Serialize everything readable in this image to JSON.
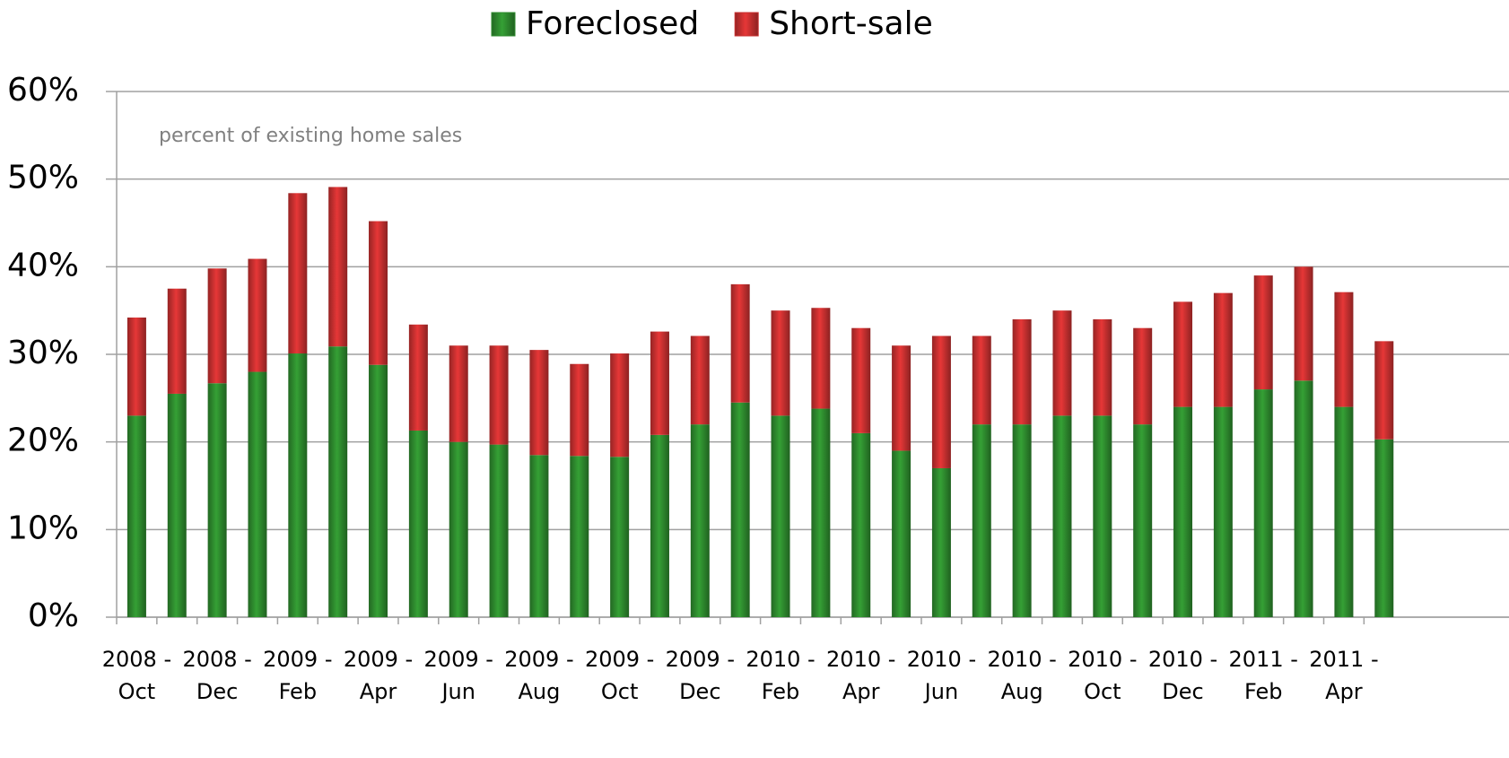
{
  "chart_data": {
    "type": "stacked_bar",
    "annotation": "percent of existing home sales",
    "categories": [
      "2008 - Oct",
      null,
      "2008 - Dec",
      null,
      "2009 - Feb",
      null,
      "2009 - Apr",
      null,
      "2009 - Jun",
      null,
      "2009 - Aug",
      null,
      "2009 - Oct",
      null,
      "2009 - Dec",
      null,
      "2010 - Feb",
      null,
      "2010 - Apr",
      null,
      "2010 - Jun",
      null,
      "2010 - Aug",
      null,
      "2010 - Oct",
      null,
      "2010 - Dec",
      null,
      "2011 - Feb",
      null,
      "2011 - Apr",
      null
    ],
    "series": [
      {
        "name": "Foreclosed",
        "color": "#2e8b2e",
        "values": [
          23,
          25.5,
          26.7,
          28,
          30.1,
          30.9,
          28.8,
          21.3,
          20,
          19.7,
          18.5,
          18.4,
          18.3,
          20.8,
          22,
          24.5,
          23,
          23.8,
          21,
          19,
          17,
          22,
          22,
          23,
          23,
          22,
          24,
          24,
          26,
          27,
          24,
          20.3
        ]
      },
      {
        "name": "Short-sale",
        "color": "#c83030",
        "values": [
          11.2,
          12,
          13.1,
          12.9,
          18.3,
          18.2,
          16.4,
          12.1,
          11,
          11.3,
          12,
          10.5,
          11.8,
          11.8,
          10.1,
          13.5,
          12,
          11.5,
          12,
          12,
          15.1,
          10.1,
          12,
          12,
          11,
          11,
          12,
          13,
          13,
          13,
          13.1,
          11.2
        ]
      }
    ],
    "ylim": [
      0,
      60
    ],
    "yticks": [
      {
        "value": 0,
        "label": "0%"
      },
      {
        "value": 10,
        "label": "10%"
      },
      {
        "value": 20,
        "label": "20%"
      },
      {
        "value": 30,
        "label": "30%"
      },
      {
        "value": 40,
        "label": "40%"
      },
      {
        "value": 50,
        "label": "50%"
      },
      {
        "value": 60,
        "label": "60%"
      }
    ],
    "grid": true,
    "legend": "top"
  }
}
